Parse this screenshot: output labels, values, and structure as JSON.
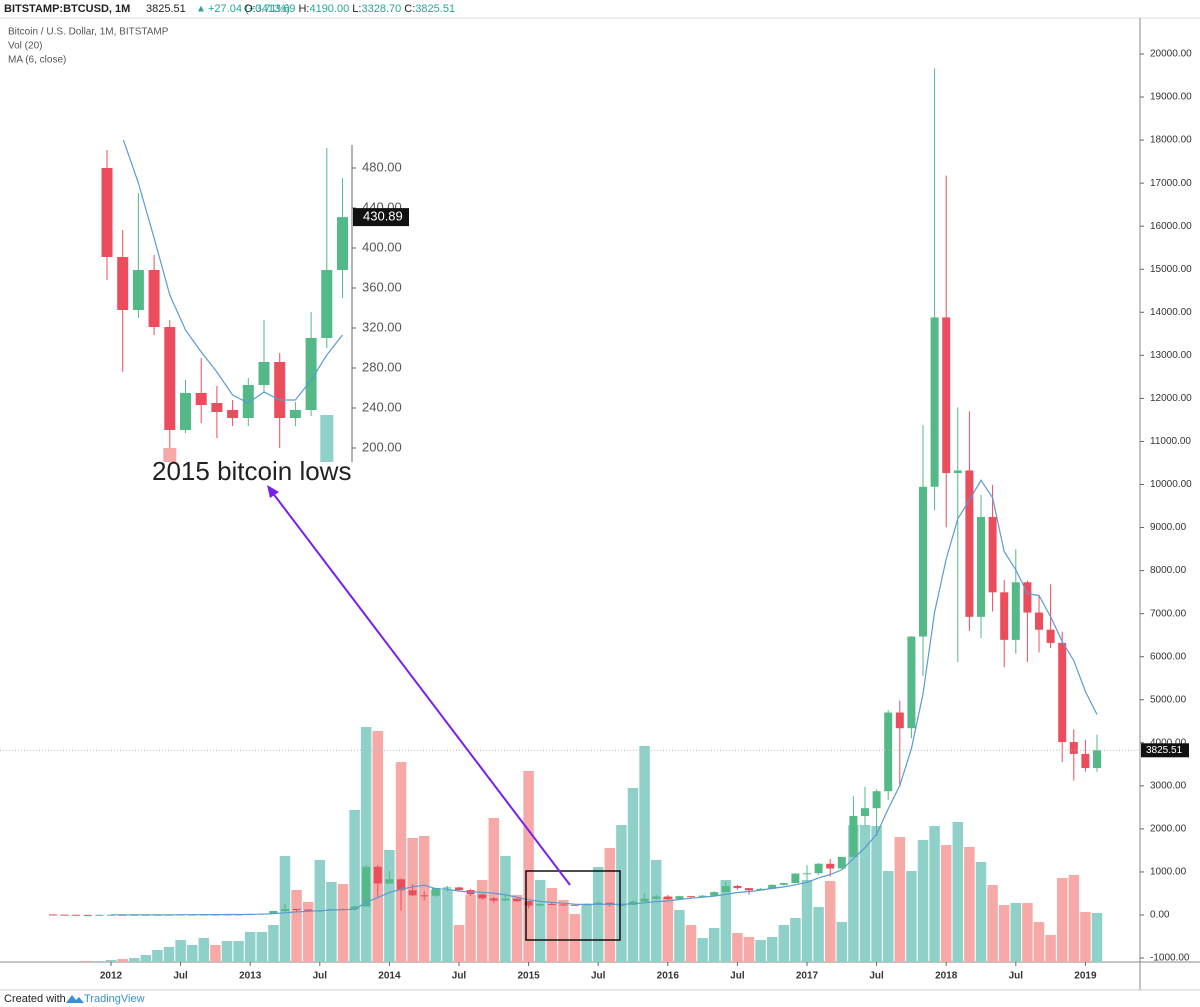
{
  "header": {
    "symbol": "BITSTAMP:BTCUSD, 1M",
    "last": "3825.51",
    "arrow": "▲",
    "change": "+27.04 (+0.71%)",
    "o_label": "O:",
    "open": "3413.69",
    "h_label": "H:",
    "high": "4190.00",
    "l_label": "L:",
    "low": "3328.70",
    "c_label": "C:",
    "close": "3825.51"
  },
  "legend": {
    "title": "Bitcoin / U.S. Dollar, 1M, BITSTAMP",
    "volume": "Vol (20)",
    "ma": "MA (6, close)"
  },
  "annotation": "2015 bitcoin lows",
  "footer": {
    "created": "Created with",
    "brand": "TradingView"
  },
  "chart_data": [
    {
      "type": "candlestick",
      "x": [
        "2011-08",
        "2011-09",
        "2011-10",
        "2011-11",
        "2011-12",
        "2012-01",
        "2012-02",
        "2012-03",
        "2012-04",
        "2012-05",
        "2012-06",
        "2012-07",
        "2012-08",
        "2012-09",
        "2012-10",
        "2012-11",
        "2012-12",
        "2013-01",
        "2013-02",
        "2013-03",
        "2013-04",
        "2013-05",
        "2013-06",
        "2013-07",
        "2013-08",
        "2013-09",
        "2013-10",
        "2013-11",
        "2013-12",
        "2014-01",
        "2014-02",
        "2014-03",
        "2014-04",
        "2014-05",
        "2014-06",
        "2014-07",
        "2014-08",
        "2014-09",
        "2014-10",
        "2014-11",
        "2014-12",
        "2015-01",
        "2015-02",
        "2015-03",
        "2015-04",
        "2015-05",
        "2015-06",
        "2015-07",
        "2015-08",
        "2015-09",
        "2015-10",
        "2015-11",
        "2015-12",
        "2016-01",
        "2016-02",
        "2016-03",
        "2016-04",
        "2016-05",
        "2016-06",
        "2016-07",
        "2016-08",
        "2016-09",
        "2016-10",
        "2016-11",
        "2016-12",
        "2017-01",
        "2017-02",
        "2017-03",
        "2017-04",
        "2017-05",
        "2017-06",
        "2017-07",
        "2017-08",
        "2017-09",
        "2017-10",
        "2017-11",
        "2017-12",
        "2018-01",
        "2018-02",
        "2018-03",
        "2018-04",
        "2018-05",
        "2018-06",
        "2018-07",
        "2018-08",
        "2018-09",
        "2018-10",
        "2018-11",
        "2018-12",
        "2019-01",
        "2019-02"
      ],
      "open": [
        13.3,
        8.2,
        5.1,
        3.2,
        3.0,
        4.7,
        5.5,
        4.9,
        4.9,
        5.0,
        5.1,
        6.7,
        9.4,
        10.2,
        12.4,
        11.2,
        12.6,
        13.5,
        20.4,
        33.4,
        93,
        139,
        128,
        97,
        106,
        135,
        133,
        198,
        1120,
        732,
        829,
        573,
        457,
        447,
        628,
        640,
        580,
        477,
        386,
        338,
        378,
        320,
        218,
        254,
        244,
        236,
        230,
        263,
        284,
        230,
        236,
        311,
        377,
        430,
        369,
        437,
        416,
        448,
        531,
        673,
        624,
        573,
        608,
        701,
        742,
        964,
        970,
        1190,
        1080,
        1348,
        2300,
        2480,
        2875,
        4703,
        4339,
        6468,
        9947,
        13880,
        10265,
        10326,
        6926,
        9246,
        7495,
        6391,
        7729,
        7025,
        6626,
        6320,
        4017,
        3742,
        3413.69
      ],
      "high": [
        13.5,
        8.9,
        5.4,
        3.6,
        4.9,
        7.2,
        6.3,
        5.4,
        5.3,
        5.2,
        6.8,
        9.5,
        15.4,
        12.9,
        12.8,
        12.9,
        13.7,
        20.6,
        33.4,
        95.5,
        266,
        140,
        129,
        110,
        136,
        148,
        218,
        1163,
        1163,
        1022,
        845,
        713,
        549,
        634,
        674,
        650,
        598,
        492,
        416,
        458,
        386,
        320,
        269,
        301,
        260,
        247,
        268,
        318,
        287,
        248,
        336,
        502,
        469,
        464,
        447,
        441,
        466,
        550,
        777,
        704,
        625,
        625,
        710,
        748,
        968,
        1153,
        1208,
        1300,
        1350,
        2760,
        2980,
        2920,
        4760,
        4979,
        6475,
        11377,
        19666,
        17176,
        11790,
        11700,
        9760,
        9990,
        7780,
        8500,
        7770,
        7410,
        7680,
        6580,
        4310,
        4069,
        4190
      ],
      "low": [
        7.6,
        4.4,
        2.3,
        2.0,
        2.9,
        4.6,
        4.2,
        4.5,
        4.8,
        4.8,
        5.1,
        6.4,
        7.1,
        9.9,
        10.0,
        10.5,
        12.4,
        13.2,
        19.1,
        33.1,
        50,
        80,
        88,
        65,
        102,
        115,
        102,
        197,
        400,
        732,
        102,
        438,
        340,
        421,
        543,
        565,
        437,
        351,
        275,
        318,
        309,
        152,
        212,
        236,
        214,
        225,
        219,
        253,
        198,
        225,
        236,
        310,
        346,
        350,
        365,
        407,
        415,
        438,
        531,
        585,
        470,
        570,
        601,
        682,
        741,
        752,
        934,
        890,
        1076,
        1348,
        2076,
        1835,
        2670,
        2980,
        4110,
        5555,
        9400,
        9005,
        5873,
        6600,
        6425,
        7050,
        5755,
        6070,
        5880,
        6100,
        6200,
        3552,
        3122,
        3330,
        3328.7
      ],
      "close": [
        8.2,
        5.1,
        3.2,
        3.0,
        4.7,
        5.5,
        4.9,
        4.9,
        5.0,
        5.1,
        6.7,
        9.4,
        10.2,
        12.4,
        11.2,
        12.6,
        13.5,
        20.4,
        33.4,
        93,
        139,
        128,
        97,
        106,
        135,
        133,
        198,
        1120,
        732,
        829,
        573,
        457,
        447,
        628,
        640,
        580,
        477,
        386,
        338,
        378,
        320,
        218,
        254,
        244,
        236,
        230,
        263,
        284,
        230,
        236,
        311,
        377,
        430,
        369,
        437,
        416,
        448,
        531,
        673,
        624,
        573,
        608,
        701,
        742,
        964,
        970,
        1190,
        1080,
        1348,
        2300,
        2480,
        2875,
        4703,
        4339,
        6468,
        9947,
        13880,
        10265,
        10326,
        6926,
        9246,
        7495,
        6391,
        7729,
        7025,
        6626,
        6320,
        4017,
        3742,
        3413.69,
        3825.51
      ],
      "volume": [
        0,
        0,
        0,
        1,
        1,
        2,
        3,
        4,
        7,
        12,
        15,
        22,
        17,
        24,
        17,
        21,
        21,
        30,
        30,
        37,
        106,
        72,
        60,
        102,
        80,
        78,
        152,
        235,
        231,
        112,
        200,
        124,
        126,
        72,
        72,
        37,
        67,
        82,
        144,
        106,
        67,
        191,
        82,
        74,
        62,
        48,
        57,
        95,
        114,
        137,
        174,
        216,
        102,
        65,
        52,
        37,
        24,
        34,
        82,
        29,
        25,
        22,
        25,
        37,
        44,
        82,
        55,
        81,
        40,
        137,
        137,
        136,
        91,
        125,
        91,
        122,
        136,
        117,
        140,
        115,
        100,
        77,
        57,
        59,
        59,
        40,
        27,
        84,
        87,
        50,
        49
      ],
      "ma": [
        null,
        null,
        null,
        null,
        null,
        4.95,
        4.4,
        4.37,
        4.67,
        5.02,
        5.35,
        6.0,
        6.88,
        8.13,
        9.17,
        10.42,
        11.55,
        13.38,
        17.25,
        30.68,
        51.98,
        71.2,
        85.1,
        99.4,
        116.3,
        123,
        132.8,
        298.2,
        404,
        524.5,
        597.5,
        651.5,
        693,
        611,
        595.7,
        554.2,
        538.2,
        526.3,
        508.2,
        466.5,
        413.2,
        352.8,
        315.7,
        292,
        275,
        250.3,
        240.8,
        251.8,
        247.8,
        246.5,
        259,
        283.5,
        311.3,
        325.5,
        360,
        390,
        412.8,
        438.5,
        479,
        521.5,
        544.2,
        576.2,
        618.3,
        653.5,
        702,
        759.7,
        862.5,
        941.2,
        1049,
        1308.7,
        1561.3,
        1878.8,
        2464.3,
        3007.5,
        3860.8,
        5135.3,
        7035.3,
        8267,
        9204.2,
        9635.3,
        10098.3,
        9689.7,
        8441.5,
        8018.8,
        7468.7,
        7418.7,
        6931,
        6351.3,
        5909.8,
        5190.6,
        4657.4
      ],
      "up_color": "#53b987",
      "down_color": "#eb4d5c",
      "volume_up_color": "#8fd0c9",
      "volume_down_color": "#f7a9a7",
      "ma_color": "#5b9bd0",
      "ylim": [
        -1092,
        20836
      ],
      "volume_lim": [
        0,
        944
      ],
      "yticks": [
        {
          "value": -1000,
          "label": "-1000.00"
        },
        {
          "value": 0,
          "label": "0.00"
        },
        {
          "value": 1000,
          "label": "1000.00"
        },
        {
          "value": 2000,
          "label": "2000.00"
        },
        {
          "value": 3000,
          "label": "3000.00"
        },
        {
          "value": 4000,
          "label": "4000.00"
        },
        {
          "value": 5000,
          "label": "5000.00"
        },
        {
          "value": 6000,
          "label": "6000.00"
        },
        {
          "value": 7000,
          "label": "7000.00"
        },
        {
          "value": 8000,
          "label": "8000.00"
        },
        {
          "value": 9000,
          "label": "9000.00"
        },
        {
          "value": 10000,
          "label": "10000.00"
        },
        {
          "value": 11000,
          "label": "11000.00"
        },
        {
          "value": 12000,
          "label": "12000.00"
        },
        {
          "value": 13000,
          "label": "13000.00"
        },
        {
          "value": 14000,
          "label": "14000.00"
        },
        {
          "value": 15000,
          "label": "15000.00"
        },
        {
          "value": 16000,
          "label": "16000.00"
        },
        {
          "value": 17000,
          "label": "17000.00"
        },
        {
          "value": 18000,
          "label": "18000.00"
        },
        {
          "value": 19000,
          "label": "19000.00"
        },
        {
          "value": 20000,
          "label": "20000.00"
        }
      ],
      "xticks": [
        {
          "value": "2012-01",
          "label": "2012"
        },
        {
          "value": "2012-07",
          "label": "Jul"
        },
        {
          "value": "2013-01",
          "label": "2013"
        },
        {
          "value": "2013-07",
          "label": "Jul"
        },
        {
          "value": "2014-01",
          "label": "2014"
        },
        {
          "value": "2014-07",
          "label": "Jul"
        },
        {
          "value": "2015-01",
          "label": "2015"
        },
        {
          "value": "2015-07",
          "label": "Jul"
        },
        {
          "value": "2016-01",
          "label": "2016"
        },
        {
          "value": "2016-07",
          "label": "Jul"
        },
        {
          "value": "2017-01",
          "label": "2017"
        },
        {
          "value": "2017-07",
          "label": "Jul"
        },
        {
          "value": "2018-01",
          "label": "2018"
        },
        {
          "value": "2018-07",
          "label": "Jul"
        },
        {
          "value": "2019-01",
          "label": "2019"
        }
      ]
    },
    {
      "type": "candlestick",
      "open": [
        480,
        391,
        338,
        378,
        321,
        218,
        255,
        245,
        238,
        230,
        263,
        286,
        230,
        238,
        310,
        378
      ],
      "high": [
        498,
        418,
        455,
        393,
        328,
        268,
        290,
        262,
        248,
        270,
        328,
        295,
        246,
        336,
        500,
        470
      ],
      "low": [
        368,
        276,
        330,
        313,
        200,
        215,
        225,
        210,
        222,
        222,
        255,
        200,
        222,
        232,
        300,
        350
      ],
      "close": [
        391,
        338,
        378,
        321,
        218,
        255,
        243,
        236,
        230,
        263,
        286,
        230,
        238,
        310,
        378,
        430.89
      ],
      "volume": [
        null,
        null,
        null,
        null,
        14,
        null,
        null,
        null,
        null,
        null,
        null,
        null,
        null,
        null,
        47,
        null
      ],
      "ma": [
        null,
        510,
        465,
        410,
        353,
        318,
        296,
        276,
        253,
        245,
        256,
        248,
        248,
        268,
        293,
        313
      ],
      "up_color": "#53b987",
      "down_color": "#eb4d5c",
      "volume_up_color": "#8fd0c9",
      "volume_down_color": "#f7a9a7",
      "ma_color": "#5b9bd0",
      "ylim": [
        186,
        508
      ],
      "volume_lim": [
        0,
        322
      ],
      "yticks": [
        {
          "value": 200,
          "label": "200.00"
        },
        {
          "value": 240,
          "label": "240.00"
        },
        {
          "value": 280,
          "label": "280.00"
        },
        {
          "value": 320,
          "label": "320.00"
        },
        {
          "value": 360,
          "label": "360.00"
        },
        {
          "value": 400,
          "label": "400.00"
        },
        {
          "value": 440,
          "label": "440.00"
        },
        {
          "value": 480,
          "label": "480.00"
        }
      ]
    }
  ]
}
